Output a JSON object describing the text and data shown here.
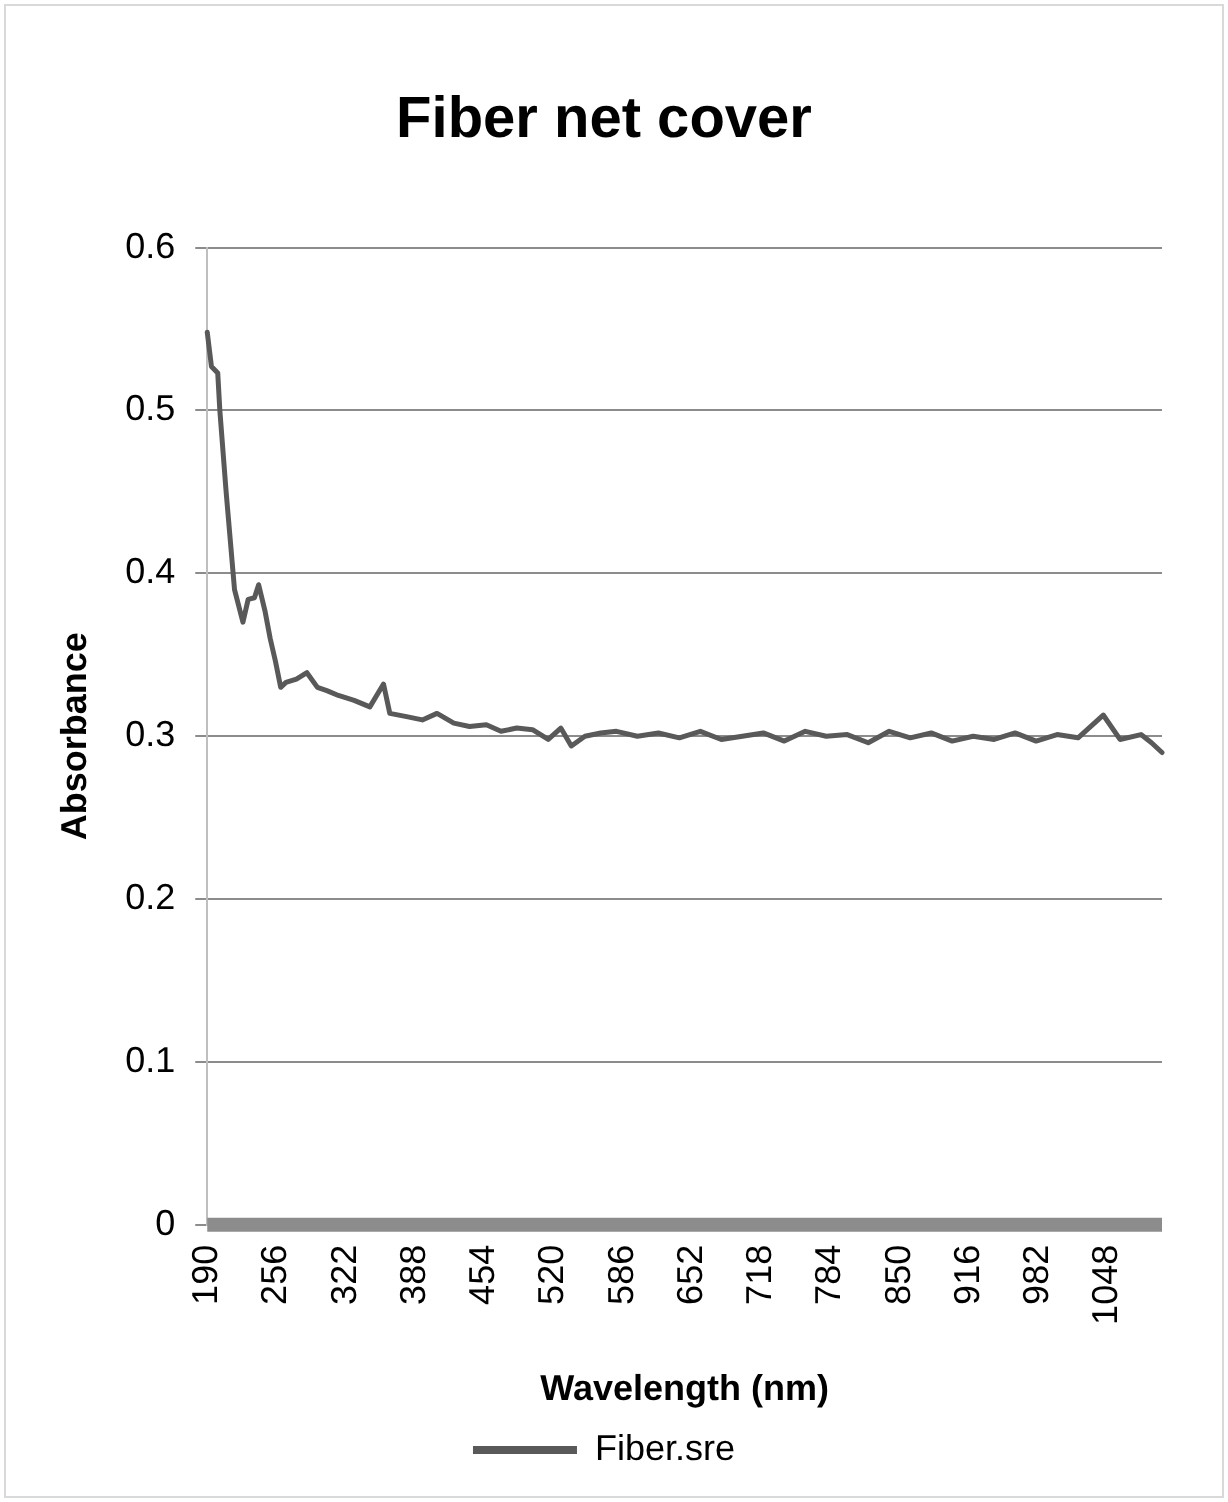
{
  "chart_data": {
    "type": "line",
    "title": "Fiber net cover",
    "xlabel": "Wavelength (nm)",
    "ylabel": "Absorbance",
    "x": [
      190,
      194,
      200,
      202,
      208,
      216,
      224,
      229,
      235,
      239,
      245,
      250,
      255,
      260,
      265,
      275,
      285,
      295,
      304,
      315,
      330,
      345,
      358,
      364,
      380,
      395,
      409,
      425,
      440,
      456,
      470,
      485,
      500,
      515,
      527,
      537,
      550,
      565,
      580,
      600,
      620,
      640,
      660,
      680,
      700,
      720,
      740,
      760,
      780,
      800,
      820,
      840,
      860,
      880,
      900,
      920,
      940,
      960,
      980,
      1000,
      1020,
      1044,
      1060,
      1080,
      1090,
      1100
    ],
    "series": [
      {
        "name": "Fiber.sre",
        "color": "#595959",
        "values": [
          0.548,
          0.527,
          0.523,
          0.5,
          0.45,
          0.39,
          0.37,
          0.384,
          0.385,
          0.393,
          0.377,
          0.36,
          0.346,
          0.33,
          0.333,
          0.335,
          0.339,
          0.33,
          0.328,
          0.325,
          0.322,
          0.318,
          0.332,
          0.314,
          0.312,
          0.31,
          0.314,
          0.308,
          0.306,
          0.307,
          0.303,
          0.305,
          0.304,
          0.298,
          0.305,
          0.294,
          0.3,
          0.302,
          0.303,
          0.3,
          0.302,
          0.299,
          0.303,
          0.298,
          0.3,
          0.302,
          0.297,
          0.303,
          0.3,
          0.301,
          0.296,
          0.303,
          0.299,
          0.302,
          0.297,
          0.3,
          0.298,
          0.302,
          0.297,
          0.301,
          0.299,
          0.313,
          0.298,
          0.301,
          0.296,
          0.29
        ]
      }
    ],
    "xlim": [
      190,
      1100
    ],
    "xticks": [
      190,
      256,
      322,
      388,
      454,
      520,
      586,
      652,
      718,
      784,
      850,
      916,
      982,
      1048
    ],
    "ylim": [
      0,
      0.6
    ],
    "yticks": [
      0,
      0.1,
      0.2,
      0.3,
      0.4,
      0.5,
      0.6
    ],
    "grid": "y",
    "legend": "bottom",
    "marker": "none",
    "line_style": "solid"
  }
}
